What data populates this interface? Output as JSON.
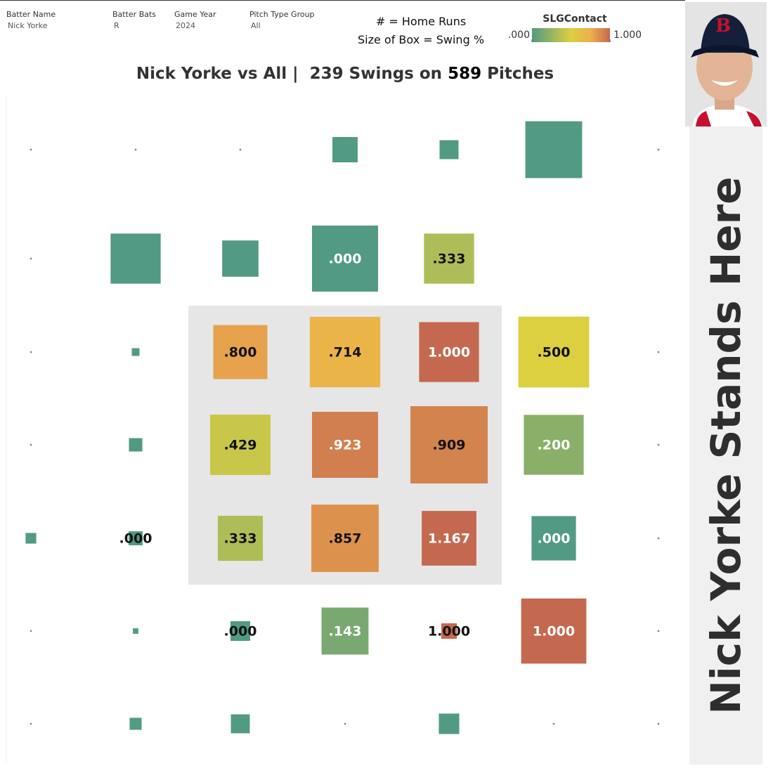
{
  "filters": [
    {
      "label": "Batter Name",
      "value": "Nick Yorke"
    },
    {
      "label": "Batter Bats",
      "value": "R"
    },
    {
      "label": "Game Year",
      "value": "2024"
    },
    {
      "label": "Pitch Type Group",
      "value": "All"
    }
  ],
  "legend": {
    "home_runs_note": "# = Home Runs",
    "size_note": "Size of Box = Swing %"
  },
  "side_text": "Nick Yorke Stands Here",
  "chart_data": {
    "type": "heatmap",
    "title": {
      "prefix": "Nick Yorke vs All |",
      "swings": 239,
      "swings_text": "Swings on",
      "pitches": 589,
      "pitches_text": "Pitches"
    },
    "color_legend": {
      "title": "SLGContact",
      "ticks": [
        {
          "value": 0,
          "label": ".000"
        },
        {
          "value": 1,
          "label": "1.000"
        }
      ]
    },
    "color_stops": [
      {
        "value": 0,
        "color": "#529a84"
      },
      {
        "value": 0.5,
        "color": "#dccf40"
      },
      {
        "value": 0.75,
        "color": "#eeb04b"
      },
      {
        "value": 1,
        "color": "#c4694f"
      }
    ],
    "empty_color": "#529a84",
    "rows": [
      {
        "sizes": [
          0.05,
          0.05,
          0.05,
          10.7,
          6,
          54,
          0.05
        ],
        "values": [
          null,
          null,
          null,
          null,
          null,
          null,
          null
        ],
        "value_labels": [
          null,
          null,
          null,
          null,
          null,
          null,
          null
        ]
      },
      {
        "sizes": [
          0.05,
          42,
          22,
          73,
          42,
          null,
          null
        ],
        "values": [
          null,
          null,
          null,
          0,
          0.333,
          null,
          null
        ],
        "value_labels": [
          null,
          null,
          null,
          ".000",
          ".333",
          null,
          null
        ]
      },
      {
        "sizes": [
          0.05,
          1,
          49,
          83,
          60,
          84,
          0.05
        ],
        "values": [
          null,
          null,
          0.8,
          0.714,
          1,
          0.5,
          null
        ],
        "value_labels": [
          null,
          null,
          ".800",
          ".714",
          "1.000",
          ".500",
          null
        ]
      },
      {
        "sizes": [
          0.05,
          3,
          61,
          73,
          100,
          60,
          0.05
        ],
        "values": [
          null,
          null,
          0.429,
          0.923,
          0.909,
          0.2,
          null
        ],
        "value_labels": [
          null,
          null,
          ".429",
          ".923",
          ".909",
          ".200",
          null
        ]
      },
      {
        "sizes": [
          1.9,
          3.3,
          34,
          76,
          50,
          33,
          0.05
        ],
        "values": [
          null,
          0,
          0.333,
          0.857,
          1.167,
          0,
          null
        ],
        "value_labels": [
          null,
          ".000",
          ".333",
          ".857",
          "1.167",
          ".000",
          null
        ]
      },
      {
        "sizes": [
          0.05,
          0.5,
          6.5,
          37,
          4,
          71,
          0.05
        ],
        "values": [
          null,
          null,
          0,
          0.143,
          1,
          1,
          null
        ],
        "value_labels": [
          null,
          null,
          ".000",
          ".143",
          "1.000",
          "1.000",
          null
        ]
      },
      {
        "sizes": [
          0.05,
          2.4,
          6,
          0.05,
          7,
          0.05,
          0.05
        ],
        "values": [
          null,
          null,
          null,
          null,
          null,
          null,
          null
        ],
        "value_labels": [
          null,
          null,
          null,
          null,
          null,
          null,
          null
        ]
      }
    ]
  }
}
